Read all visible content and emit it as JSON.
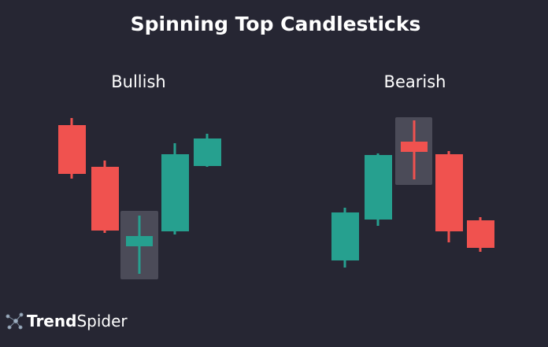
{
  "title": "Spinning Top Candlesticks",
  "panels": [
    {
      "label": "Bullish"
    },
    {
      "label": "Bearish"
    }
  ],
  "logo": [
    "Trend",
    "Spider"
  ]
}
